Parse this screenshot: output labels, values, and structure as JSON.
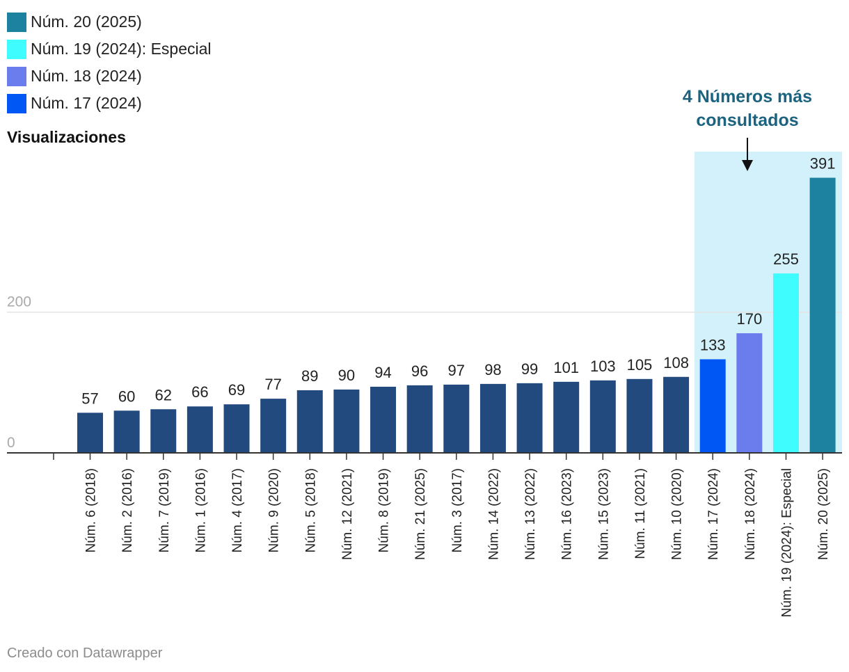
{
  "chart_data": {
    "type": "bar",
    "ylabel": "Visualizaciones",
    "ylim": [
      0,
      420
    ],
    "yticks": [
      0,
      200
    ],
    "categories": [
      "Núm. 6 (2018)",
      "Núm. 2 (2016)",
      "Núm. 7 (2019)",
      "Núm. 1 (2016)",
      "Núm. 4 (2017)",
      "Núm. 9 (2020)",
      "Núm. 5 (2018)",
      "Núm. 12 (2021)",
      "Núm. 8 (2019)",
      "Núm. 21 (2025)",
      "Núm. 3 (2017)",
      "Núm. 14 (2022)",
      "Núm. 13 (2022)",
      "Núm. 16 (2023)",
      "Núm. 15 (2023)",
      "Núm. 11 (2021)",
      "Núm. 10 (2020)",
      "Núm. 17 (2024)",
      "Núm. 18 (2024)",
      "Núm. 19 (2024): Especial",
      "Núm. 20 (2025)"
    ],
    "values": [
      57,
      60,
      62,
      66,
      69,
      77,
      89,
      90,
      94,
      96,
      97,
      98,
      99,
      101,
      103,
      105,
      108,
      133,
      170,
      255,
      391
    ],
    "colors": [
      "#224a7f",
      "#224a7f",
      "#224a7f",
      "#224a7f",
      "#224a7f",
      "#224a7f",
      "#224a7f",
      "#224a7f",
      "#224a7f",
      "#224a7f",
      "#224a7f",
      "#224a7f",
      "#224a7f",
      "#224a7f",
      "#224a7f",
      "#224a7f",
      "#224a7f",
      "#0057f3",
      "#6b7ded",
      "#3ffdff",
      "#1d829f"
    ],
    "legend": [
      {
        "label": "Núm. 20 (2025)",
        "color": "#1d829f"
      },
      {
        "label": "Núm. 19 (2024): Especial",
        "color": "#3ffdff"
      },
      {
        "label": "Núm. 18 (2024)",
        "color": "#6b7ded"
      },
      {
        "label": "Núm. 17 (2024)",
        "color": "#0057f3"
      }
    ],
    "annotation": {
      "text_line1": "4 Números más",
      "text_line2": "consultados",
      "color": "#1b637f",
      "highlight_color": "#d3f1fb",
      "highlight_from_index": 17
    }
  },
  "footer": "Creado con Datawrapper"
}
